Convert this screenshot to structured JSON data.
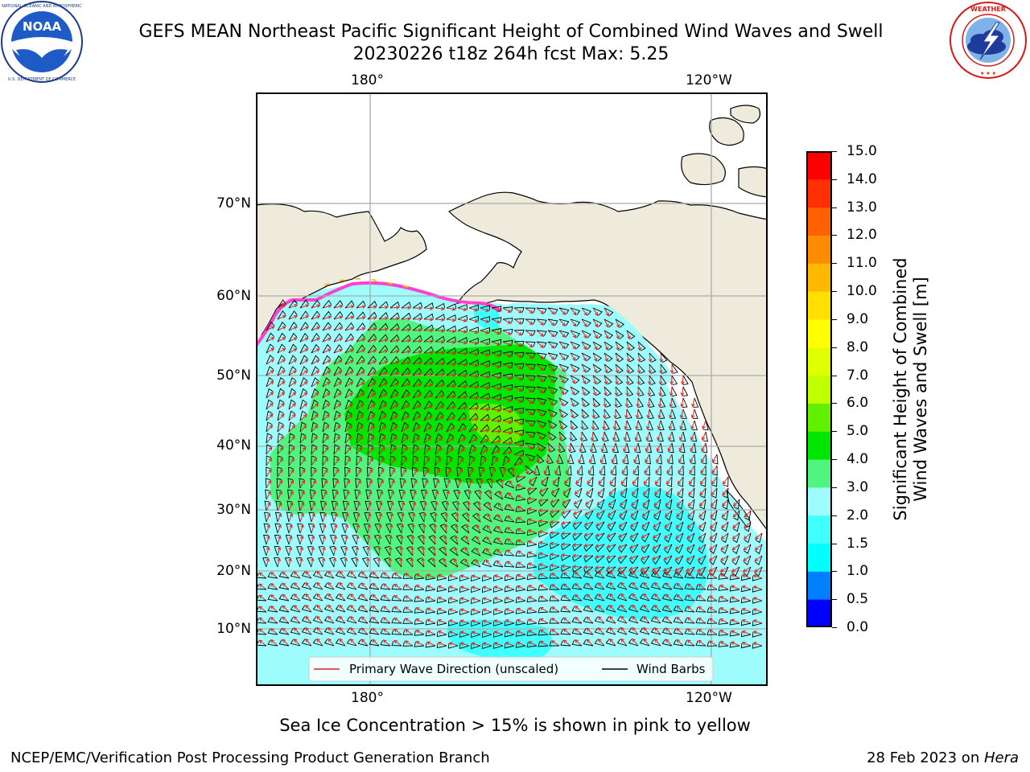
{
  "header": {
    "title_line1": "GEFS MEAN Northeast Pacific Significant Height of Combined Wind Waves and Swell",
    "title_line2": "20230226 t18z 264h fcst   Max: 5.25"
  },
  "logos": {
    "left": {
      "text": "NOAA",
      "ring_text": "NATIONAL OCEANIC AND ATMOSPHERIC ADMINISTRATION",
      "bottom_text": "U.S. DEPARTMENT OF COMMERCE",
      "icon": "noaa-logo"
    },
    "right": {
      "ring_text": "NATIONAL WEATHER SERVICE",
      "icon": "nws-logo"
    }
  },
  "map": {
    "lon_labels_top": [
      "180°",
      "120°W"
    ],
    "lon_labels_bottom": [
      "180°",
      "120°W"
    ],
    "lat_labels": [
      "70°N",
      "60°N",
      "50°N",
      "40°N",
      "30°N",
      "20°N",
      "10°N"
    ],
    "legend": {
      "wave": "Primary Wave Direction (unscaled)",
      "wind": "Wind Barbs",
      "wave_color": "#e02020",
      "wind_color": "#000000"
    },
    "colors": {
      "land": "#efebdc",
      "ocean_default": "#9ffcfc"
    }
  },
  "colorbar": {
    "label_line1": "Significant Height of Combined",
    "label_line2": "Wind Waves and Swell [m]",
    "ticks": [
      "0.0",
      "0.5",
      "1.0",
      "1.5",
      "2.0",
      "3.0",
      "4.0",
      "5.0",
      "6.0",
      "7.0",
      "8.0",
      "9.0",
      "10.0",
      "11.0",
      "12.0",
      "13.0",
      "14.0",
      "15.0"
    ],
    "colors": [
      "#0000ff",
      "#0080ff",
      "#00ffff",
      "#40ffff",
      "#9ffcfc",
      "#50f580",
      "#00e600",
      "#60f000",
      "#c0ff00",
      "#e0ff00",
      "#ffff00",
      "#ffe000",
      "#ffb800",
      "#ff8c00",
      "#ff6000",
      "#ff3000",
      "#ff0000"
    ]
  },
  "footer": {
    "sea_ice_note": "Sea Ice Concentration > 15% is shown in pink to yellow",
    "left": "NCEP/EMC/Verification Post Processing Product Generation Branch",
    "right_prefix": "28 Feb 2023 on ",
    "right_host": "Hera"
  }
}
